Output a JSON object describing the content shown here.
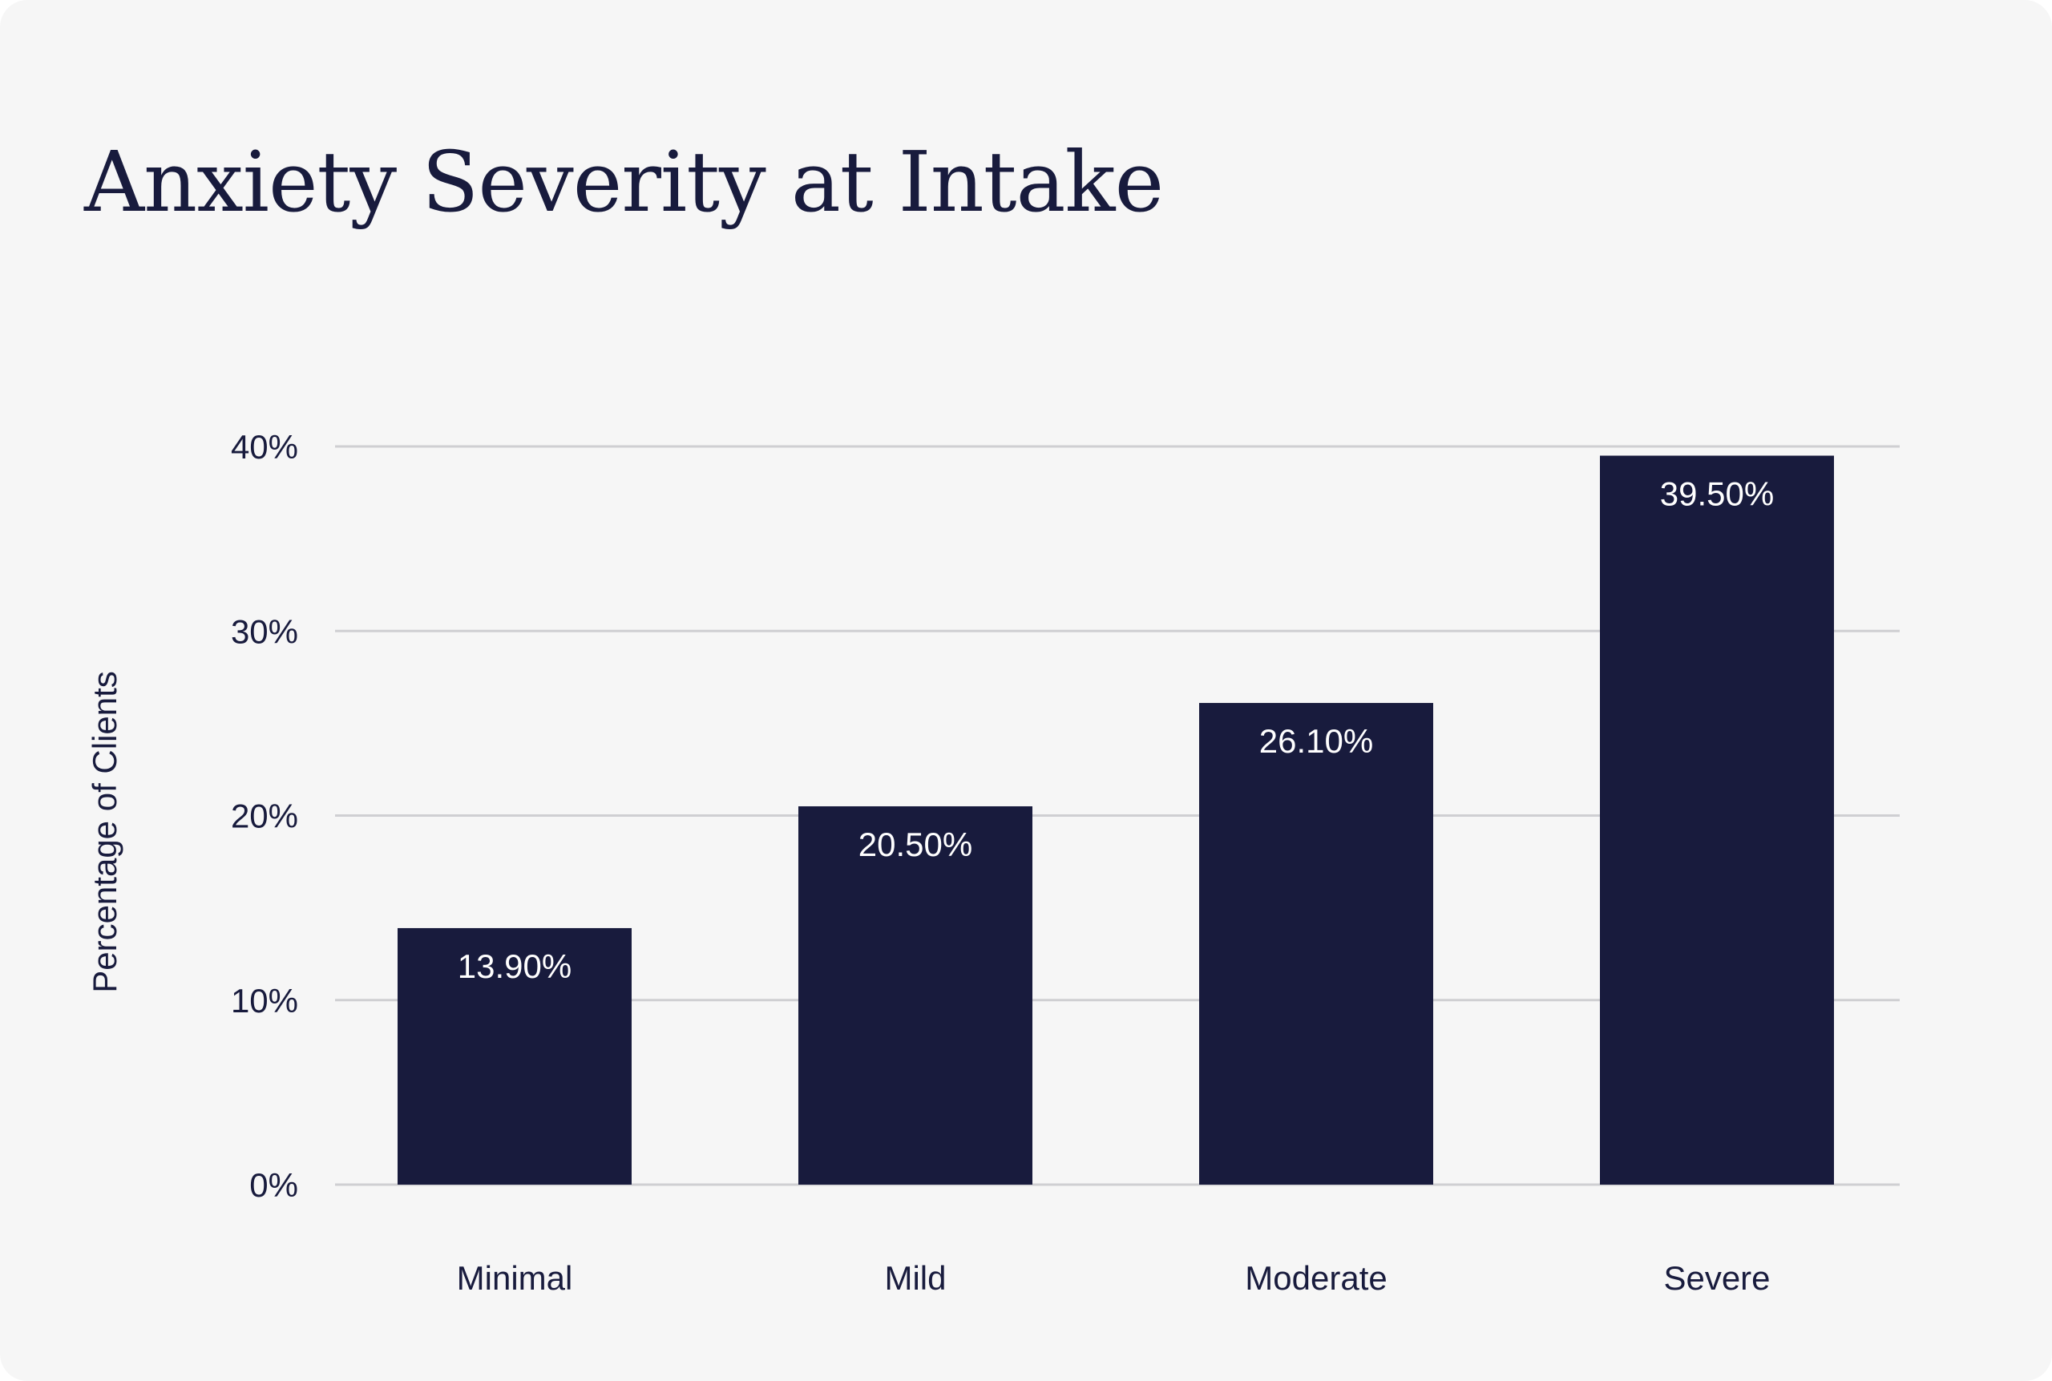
{
  "chart_data": {
    "type": "bar",
    "title": "Anxiety Severity at Intake",
    "xlabel": "",
    "ylabel": "Percentage of Clients",
    "categories": [
      "Minimal",
      "Mild",
      "Moderate",
      "Severe"
    ],
    "values": [
      13.9,
      20.5,
      26.1,
      39.5
    ],
    "data_labels": [
      "13.90%",
      "20.50%",
      "26.10%",
      "39.50%"
    ],
    "ylim": [
      0,
      40
    ],
    "yticks": [
      0,
      10,
      20,
      30,
      40
    ],
    "ytick_labels": [
      "0%",
      "10%",
      "20%",
      "30%",
      "40%"
    ],
    "grid": true,
    "colors": {
      "bar": "#181b3d",
      "background": "#f6f6f6",
      "grid": "#cfcfd2",
      "text": "#181b3d",
      "bar_label": "#ffffff"
    }
  }
}
